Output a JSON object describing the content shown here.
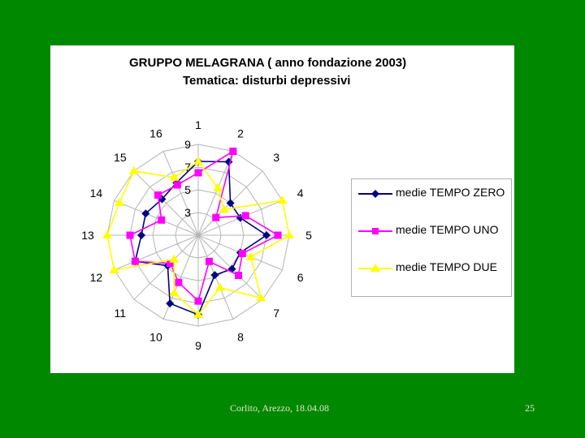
{
  "colors": {
    "background": "#008800",
    "panel": "#ffffff",
    "grid": "#b4b4b4",
    "series": [
      "#000080",
      "#ff00ff",
      "#ffff00"
    ]
  },
  "chart_data": {
    "type": "radar",
    "title": "GRUPPO MELAGRANA ( anno fondazione 2003)",
    "subtitle": "Tematica: disturbi depressivi",
    "categories": [
      "1",
      "2",
      "3",
      "4",
      "5",
      "6",
      "7",
      "8",
      "9",
      "10",
      "11",
      "12",
      "13",
      "14",
      "15",
      "16"
    ],
    "scale_labels": [
      "3",
      "5",
      "7",
      "9"
    ],
    "scale_range": [
      1,
      9
    ],
    "legend_position": "right",
    "series": [
      {
        "name": "medie TEMPO ZERO",
        "marker": "diamond",
        "color": "#000080",
        "values": [
          7.5,
          8.0,
          5.0,
          5.0,
          7.0,
          5.0,
          5.2,
          4.8,
          8.0,
          7.5,
          4.8,
          7.0,
          6.0,
          6.0,
          5.5,
          6.0
        ]
      },
      {
        "name": "medie TEMPO UNO",
        "marker": "square",
        "color": "#ff00ff",
        "values": [
          6.5,
          9.0,
          3.2,
          5.5,
          8.0,
          5.2,
          6.0,
          3.5,
          6.8,
          5.5,
          4.5,
          7.0,
          7.0,
          4.5,
          6.0,
          5.8
        ]
      },
      {
        "name": "medie TEMPO DUE",
        "marker": "triangle",
        "color": "#ffff00",
        "values": [
          7.5,
          5.5,
          4.2,
          9.0,
          9.0,
          6.0,
          8.8,
          6.0,
          8.0,
          6.5,
          4.0,
          9.0,
          9.0,
          8.5,
          9.0,
          6.5
        ]
      }
    ]
  },
  "footer": {
    "text": "Corlito, Arezzo, 18.04.08",
    "page_number": "25"
  }
}
